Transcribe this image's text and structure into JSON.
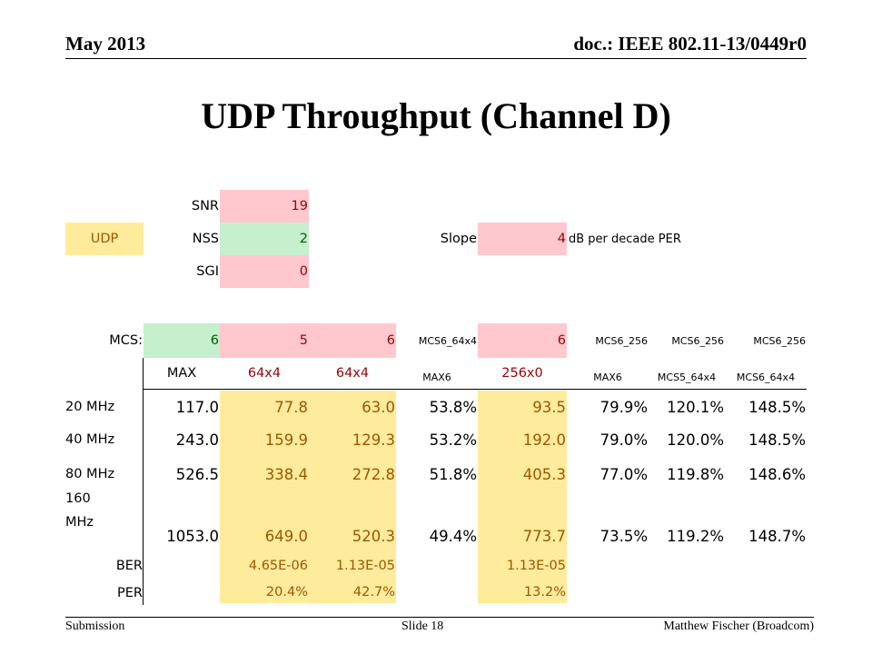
{
  "header": {
    "date": "May 2013",
    "doc": "doc.: IEEE 802.11-13/0449r0"
  },
  "title": "UDP Throughput (Channel D)",
  "footer": {
    "left": "Submission",
    "center": "Slide 18",
    "right": "Matthew Fischer (Broadcom)"
  },
  "params": {
    "udp_label": "UDP",
    "snr_label": "SNR",
    "snr_value": "19",
    "nss_label": "NSS",
    "nss_value": "2",
    "sgi_label": "SGI",
    "sgi_value": "0",
    "slope_label": "Slope",
    "slope_value": "4",
    "slope_unit": "dB per decade PER"
  },
  "table": {
    "mcs_label": "MCS:",
    "mcs": [
      "6",
      "5",
      "6",
      "MCS6_64x4",
      "6",
      "MCS6_256",
      "MCS6_256",
      "MCS6_256"
    ],
    "sub": [
      "MAX",
      "64x4",
      "64x4",
      "MAX6",
      "256x0",
      "MAX6",
      "MCS5_64x4",
      "MCS6_64x4"
    ],
    "rows": [
      {
        "label": "20 MHz",
        "values": [
          "117.0",
          "77.8",
          "63.0",
          "53.8%",
          "93.5",
          "79.9%",
          "120.1%",
          "148.5%"
        ]
      },
      {
        "label": "40 MHz",
        "values": [
          "243.0",
          "159.9",
          "129.3",
          "53.2%",
          "192.0",
          "79.0%",
          "120.0%",
          "148.5%"
        ]
      },
      {
        "label": "80 MHz",
        "values": [
          "526.5",
          "338.4",
          "272.8",
          "51.8%",
          "405.3",
          "77.0%",
          "119.8%",
          "148.6%"
        ]
      },
      {
        "label_top": "160",
        "label_bottom": "MHz",
        "values": [
          "1053.0",
          "649.0",
          "520.3",
          "49.4%",
          "773.7",
          "73.5%",
          "119.2%",
          "148.7%"
        ]
      }
    ],
    "ber": {
      "label": "BER",
      "values": [
        "4.65E-06",
        "1.13E-05",
        "1.13E-05"
      ]
    },
    "per": {
      "label": "PER",
      "values": [
        "20.4%",
        "42.7%",
        "13.2%"
      ]
    }
  },
  "colors": {
    "pink_fill": "#ffc7ce",
    "pink_text": "#9c0006",
    "green_fill": "#c6efce",
    "green_text": "#006100",
    "yellow_fill": "#ffeb9c",
    "yellow_text": "#9c5700"
  }
}
